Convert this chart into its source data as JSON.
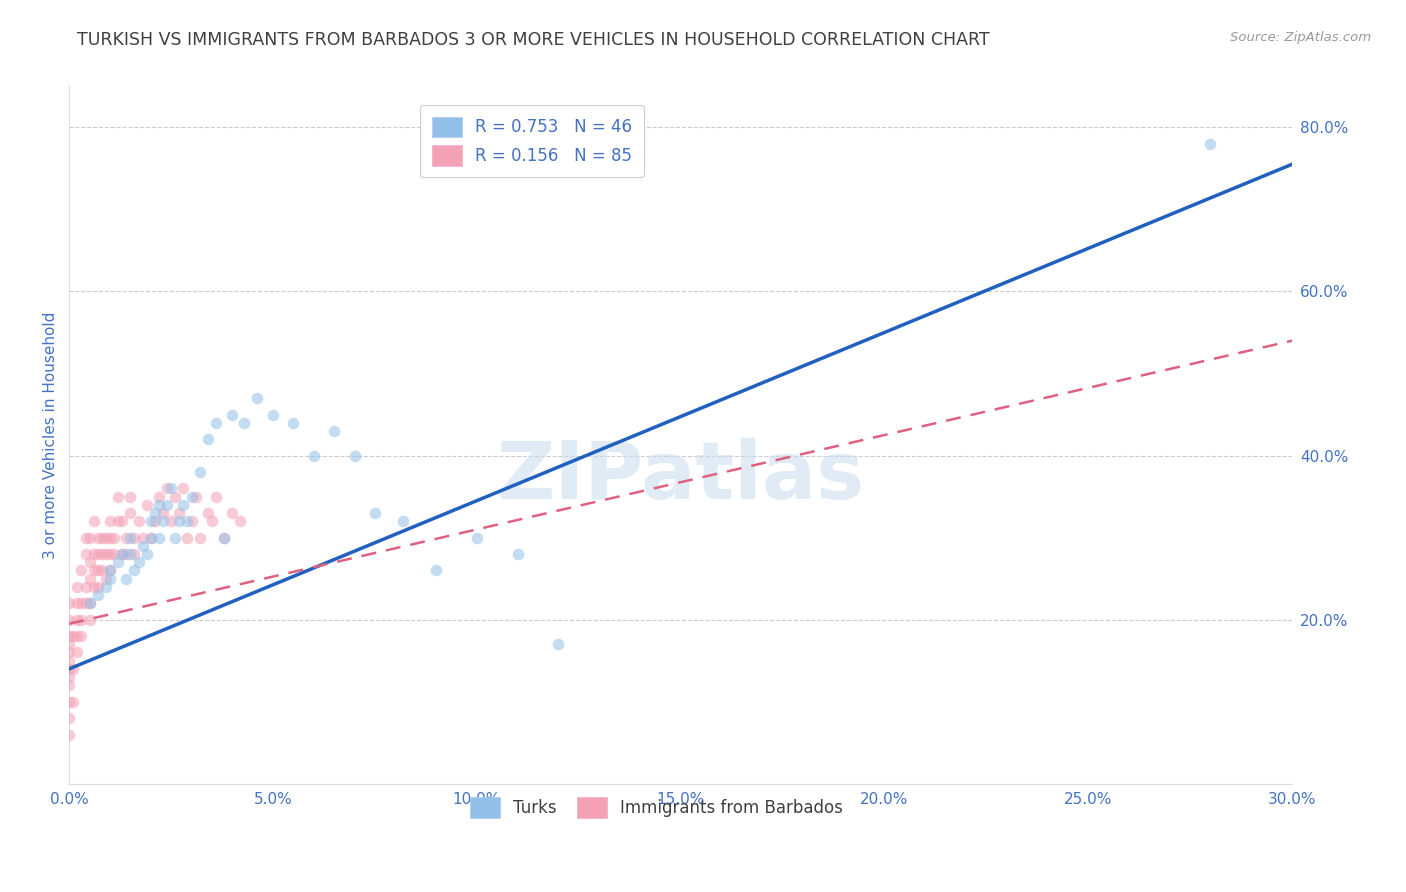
{
  "title": "TURKISH VS IMMIGRANTS FROM BARBADOS 3 OR MORE VEHICLES IN HOUSEHOLD CORRELATION CHART",
  "source": "Source: ZipAtlas.com",
  "ylabel": "3 or more Vehicles in Household",
  "xlim": [
    0.0,
    0.3
  ],
  "ylim": [
    0.0,
    0.85
  ],
  "xticks": [
    0.0,
    0.05,
    0.1,
    0.15,
    0.2,
    0.25,
    0.3
  ],
  "xticklabels": [
    "0.0%",
    "5.0%",
    "10.0%",
    "15.0%",
    "20.0%",
    "25.0%",
    "30.0%"
  ],
  "yticks_right": [
    0.2,
    0.4,
    0.6,
    0.8
  ],
  "yticklabels_right": [
    "20.0%",
    "40.0%",
    "60.0%",
    "80.0%"
  ],
  "legend_r1": "0.753",
  "legend_n1": "46",
  "legend_r2": "0.156",
  "legend_n2": "85",
  "color_turks": "#92C0E8",
  "color_barbados": "#F4A0B5",
  "color_trend_turks": "#2060C0",
  "color_trend_barbados": "#E06080",
  "color_axis_text": "#4472C4",
  "color_title": "#404040",
  "watermark": "ZIPatlas",
  "turks_x": [
    0.005,
    0.007,
    0.009,
    0.01,
    0.01,
    0.012,
    0.013,
    0.014,
    0.015,
    0.015,
    0.016,
    0.017,
    0.018,
    0.019,
    0.02,
    0.02,
    0.021,
    0.022,
    0.022,
    0.023,
    0.024,
    0.025,
    0.026,
    0.027,
    0.028,
    0.029,
    0.03,
    0.032,
    0.034,
    0.036,
    0.038,
    0.04,
    0.043,
    0.046,
    0.05,
    0.055,
    0.06,
    0.065,
    0.07,
    0.075,
    0.082,
    0.09,
    0.1,
    0.11,
    0.12,
    0.28
  ],
  "turks_y": [
    0.22,
    0.23,
    0.24,
    0.25,
    0.26,
    0.27,
    0.28,
    0.25,
    0.28,
    0.3,
    0.26,
    0.27,
    0.29,
    0.28,
    0.3,
    0.32,
    0.33,
    0.34,
    0.3,
    0.32,
    0.34,
    0.36,
    0.3,
    0.32,
    0.34,
    0.32,
    0.35,
    0.38,
    0.42,
    0.44,
    0.3,
    0.45,
    0.44,
    0.47,
    0.45,
    0.44,
    0.4,
    0.43,
    0.4,
    0.33,
    0.32,
    0.26,
    0.3,
    0.28,
    0.17,
    0.78
  ],
  "barbados_x": [
    0.0,
    0.0,
    0.0,
    0.0,
    0.0,
    0.0,
    0.0,
    0.0,
    0.0,
    0.0,
    0.0,
    0.0,
    0.001,
    0.001,
    0.001,
    0.002,
    0.002,
    0.002,
    0.002,
    0.002,
    0.003,
    0.003,
    0.003,
    0.003,
    0.004,
    0.004,
    0.004,
    0.004,
    0.005,
    0.005,
    0.005,
    0.005,
    0.005,
    0.006,
    0.006,
    0.006,
    0.006,
    0.007,
    0.007,
    0.007,
    0.007,
    0.008,
    0.008,
    0.008,
    0.009,
    0.009,
    0.009,
    0.01,
    0.01,
    0.01,
    0.01,
    0.011,
    0.011,
    0.012,
    0.012,
    0.013,
    0.013,
    0.014,
    0.014,
    0.015,
    0.015,
    0.016,
    0.016,
    0.017,
    0.018,
    0.019,
    0.02,
    0.021,
    0.022,
    0.023,
    0.024,
    0.025,
    0.026,
    0.027,
    0.028,
    0.029,
    0.03,
    0.031,
    0.032,
    0.034,
    0.035,
    0.036,
    0.038,
    0.04,
    0.042
  ],
  "barbados_y": [
    0.14,
    0.12,
    0.1,
    0.16,
    0.18,
    0.15,
    0.13,
    0.17,
    0.2,
    0.22,
    0.08,
    0.06,
    0.1,
    0.14,
    0.18,
    0.2,
    0.22,
    0.16,
    0.18,
    0.24,
    0.22,
    0.26,
    0.2,
    0.18,
    0.24,
    0.28,
    0.3,
    0.22,
    0.25,
    0.27,
    0.2,
    0.22,
    0.3,
    0.26,
    0.24,
    0.28,
    0.32,
    0.26,
    0.28,
    0.3,
    0.24,
    0.3,
    0.28,
    0.26,
    0.3,
    0.28,
    0.25,
    0.3,
    0.28,
    0.32,
    0.26,
    0.3,
    0.28,
    0.32,
    0.35,
    0.28,
    0.32,
    0.3,
    0.28,
    0.33,
    0.35,
    0.3,
    0.28,
    0.32,
    0.3,
    0.34,
    0.3,
    0.32,
    0.35,
    0.33,
    0.36,
    0.32,
    0.35,
    0.33,
    0.36,
    0.3,
    0.32,
    0.35,
    0.3,
    0.33,
    0.32,
    0.35,
    0.3,
    0.33,
    0.32
  ],
  "turks_trend": [
    0.0,
    0.3,
    0.14,
    0.755
  ],
  "barbados_trend": [
    0.0,
    0.3,
    0.195,
    0.54
  ],
  "background_color": "#FFFFFF",
  "grid_color": "#CCCCCC",
  "scatter_size": 70,
  "scatter_alpha": 0.55,
  "title_fontsize": 12.5,
  "label_fontsize": 11,
  "tick_fontsize": 11,
  "legend_fontsize": 12
}
